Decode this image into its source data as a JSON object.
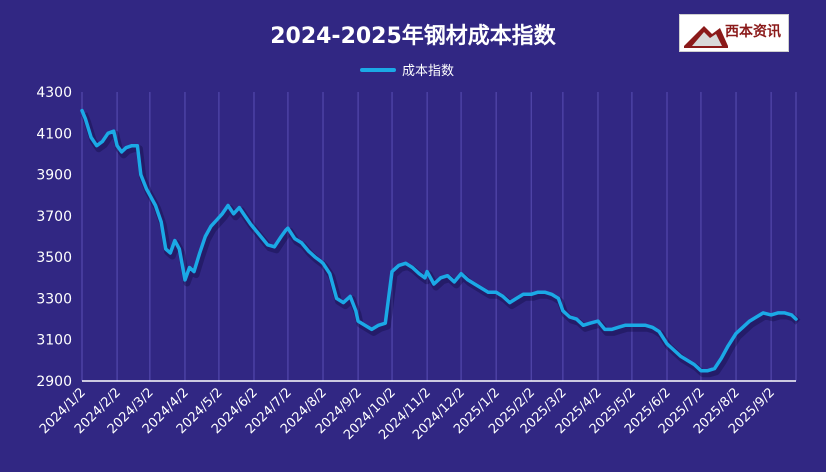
{
  "chart_data": {
    "type": "line",
    "title": "2024-2025年钢材成本指数",
    "xlabel": "",
    "ylabel": "",
    "ylim": [
      2900,
      4300
    ],
    "yticks": [
      4300,
      4100,
      3900,
      3700,
      3500,
      3300,
      3100,
      2900
    ],
    "grid": "vertical",
    "legend_position": "top-center",
    "colors": {
      "background": "#312783",
      "line": "#1ba9e6",
      "grid": "#5a4fb5",
      "axis": "#ffffff"
    },
    "categories": [
      "2024/1/2",
      "2024/2/2",
      "2024/3/2",
      "2024/4/2",
      "2024/5/2",
      "2024/6/2",
      "2024/7/2",
      "2024/8/2",
      "2024/9/2",
      "2024/10/2",
      "2024/11/2",
      "2024/12/2",
      "2025/1/2",
      "2025/2/2",
      "2025/3/2",
      "2025/4/2",
      "2025/5/2",
      "2025/6/2",
      "2025/7/2",
      "2025/8/2",
      "2025/9/2"
    ],
    "series": [
      {
        "name": "成本指数",
        "points": [
          [
            "2024/1/2",
            4210
          ],
          [
            "2024/1/5",
            4170
          ],
          [
            "2024/1/10",
            4080
          ],
          [
            "2024/1/15",
            4040
          ],
          [
            "2024/1/20",
            4060
          ],
          [
            "2024/1/25",
            4100
          ],
          [
            "2024/1/30",
            4110
          ],
          [
            "2024/2/2",
            4040
          ],
          [
            "2024/2/6",
            4010
          ],
          [
            "2024/2/10",
            4030
          ],
          [
            "2024/2/15",
            4040
          ],
          [
            "2024/2/20",
            4040
          ],
          [
            "2024/2/23",
            3900
          ],
          [
            "2024/2/28",
            3830
          ],
          [
            "2024/3/2",
            3800
          ],
          [
            "2024/3/7",
            3750
          ],
          [
            "2024/3/12",
            3670
          ],
          [
            "2024/3/16",
            3540
          ],
          [
            "2024/3/20",
            3520
          ],
          [
            "2024/3/24",
            3580
          ],
          [
            "2024/3/28",
            3540
          ],
          [
            "2024/4/2",
            3390
          ],
          [
            "2024/4/6",
            3450
          ],
          [
            "2024/4/10",
            3430
          ],
          [
            "2024/4/15",
            3520
          ],
          [
            "2024/4/20",
            3600
          ],
          [
            "2024/4/25",
            3650
          ],
          [
            "2024/4/30",
            3680
          ],
          [
            "2024/5/5",
            3710
          ],
          [
            "2024/5/10",
            3750
          ],
          [
            "2024/5/15",
            3710
          ],
          [
            "2024/5/20",
            3740
          ],
          [
            "2024/5/25",
            3700
          ],
          [
            "2024/5/30",
            3660
          ],
          [
            "2024/6/2",
            3640
          ],
          [
            "2024/6/8",
            3600
          ],
          [
            "2024/6/14",
            3560
          ],
          [
            "2024/6/20",
            3550
          ],
          [
            "2024/6/26",
            3600
          ],
          [
            "2024/6/30",
            3630
          ],
          [
            "2024/7/2",
            3640
          ],
          [
            "2024/7/8",
            3590
          ],
          [
            "2024/7/14",
            3570
          ],
          [
            "2024/7/20",
            3530
          ],
          [
            "2024/7/26",
            3500
          ],
          [
            "2024/7/31",
            3480
          ],
          [
            "2024/8/2",
            3470
          ],
          [
            "2024/8/8",
            3420
          ],
          [
            "2024/8/14",
            3300
          ],
          [
            "2024/8/20",
            3280
          ],
          [
            "2024/8/26",
            3310
          ],
          [
            "2024/8/31",
            3240
          ],
          [
            "2024/9/2",
            3190
          ],
          [
            "2024/9/8",
            3170
          ],
          [
            "2024/9/14",
            3150
          ],
          [
            "2024/9/20",
            3170
          ],
          [
            "2024/9/26",
            3180
          ],
          [
            "2024/10/2",
            3430
          ],
          [
            "2024/10/8",
            3460
          ],
          [
            "2024/10/14",
            3470
          ],
          [
            "2024/10/20",
            3450
          ],
          [
            "2024/10/26",
            3420
          ],
          [
            "2024/10/31",
            3400
          ],
          [
            "2024/11/2",
            3430
          ],
          [
            "2024/11/8",
            3370
          ],
          [
            "2024/11/14",
            3400
          ],
          [
            "2024/11/20",
            3410
          ],
          [
            "2024/11/26",
            3380
          ],
          [
            "2024/12/2",
            3420
          ],
          [
            "2024/12/8",
            3390
          ],
          [
            "2024/12/14",
            3370
          ],
          [
            "2024/12/20",
            3350
          ],
          [
            "2024/12/26",
            3330
          ],
          [
            "2025/1/2",
            3330
          ],
          [
            "2025/1/8",
            3310
          ],
          [
            "2025/1/14",
            3280
          ],
          [
            "2025/1/20",
            3300
          ],
          [
            "2025/1/26",
            3320
          ],
          [
            "2025/2/2",
            3320
          ],
          [
            "2025/2/8",
            3330
          ],
          [
            "2025/2/14",
            3330
          ],
          [
            "2025/2/20",
            3320
          ],
          [
            "2025/2/26",
            3300
          ],
          [
            "2025/3/2",
            3240
          ],
          [
            "2025/3/8",
            3210
          ],
          [
            "2025/3/14",
            3200
          ],
          [
            "2025/3/20",
            3170
          ],
          [
            "2025/3/26",
            3180
          ],
          [
            "2025/4/2",
            3190
          ],
          [
            "2025/4/8",
            3150
          ],
          [
            "2025/4/14",
            3150
          ],
          [
            "2025/4/20",
            3160
          ],
          [
            "2025/4/26",
            3170
          ],
          [
            "2025/5/2",
            3170
          ],
          [
            "2025/5/8",
            3170
          ],
          [
            "2025/5/14",
            3170
          ],
          [
            "2025/5/20",
            3160
          ],
          [
            "2025/5/26",
            3140
          ],
          [
            "2025/6/2",
            3080
          ],
          [
            "2025/6/8",
            3050
          ],
          [
            "2025/6/14",
            3020
          ],
          [
            "2025/6/20",
            3000
          ],
          [
            "2025/6/26",
            2980
          ],
          [
            "2025/7/2",
            2950
          ],
          [
            "2025/7/8",
            2950
          ],
          [
            "2025/7/14",
            2960
          ],
          [
            "2025/7/20",
            3010
          ],
          [
            "2025/7/26",
            3070
          ],
          [
            "2025/8/2",
            3130
          ],
          [
            "2025/8/8",
            3160
          ],
          [
            "2025/8/14",
            3190
          ],
          [
            "2025/8/20",
            3210
          ],
          [
            "2025/8/26",
            3230
          ],
          [
            "2025/9/2",
            3220
          ],
          [
            "2025/9/8",
            3230
          ],
          [
            "2025/9/14",
            3230
          ],
          [
            "2025/9/20",
            3220
          ],
          [
            "2025/9/24",
            3200
          ]
        ]
      }
    ]
  },
  "logo": {
    "text": "西本资讯"
  }
}
